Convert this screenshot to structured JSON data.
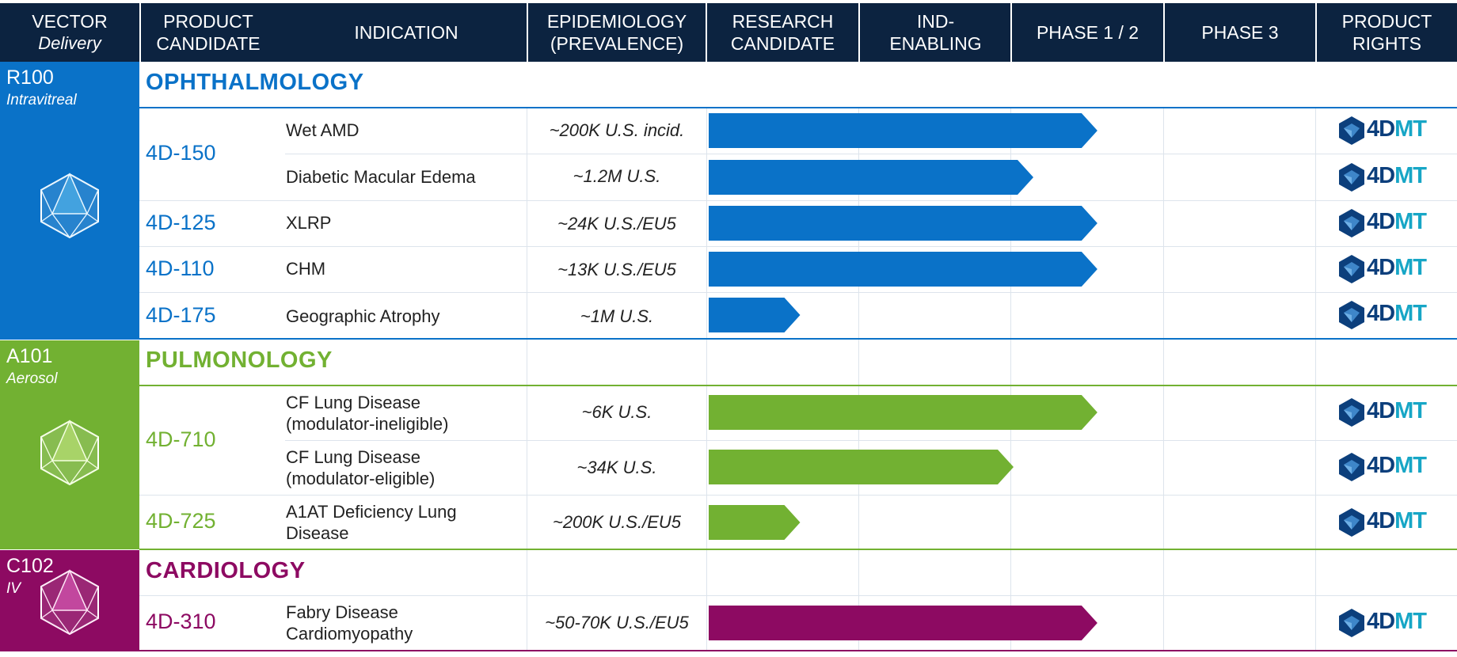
{
  "header": {
    "vector": "VECTOR",
    "vector_sub": "Delivery",
    "product_candidate_1": "PRODUCT",
    "product_candidate_2": "CANDIDATE",
    "indication": "INDICATION",
    "epidemiology_1": "EPIDEMIOLOGY",
    "epidemiology_2": "(PREVALENCE)",
    "stages": [
      {
        "line1": "RESEARCH",
        "line2": "CANDIDATE"
      },
      {
        "line1": "IND-",
        "line2": "ENABLING"
      },
      {
        "line1": "PHASE 1 / 2",
        "line2": ""
      },
      {
        "line1": "PHASE 3",
        "line2": ""
      }
    ],
    "product_rights_1": "PRODUCT",
    "product_rights_2": "RIGHTS"
  },
  "sections": [
    {
      "vector": "R100",
      "delivery": "Intravitreal",
      "title": "OPHTHALMOLOGY",
      "color": "#0a72c8"
    },
    {
      "vector": "A101",
      "delivery": "Aerosol",
      "title": "PULMONOLOGY",
      "color": "#72b132"
    },
    {
      "vector": "C102",
      "delivery": "IV",
      "title": "CARDIOLOGY",
      "color": "#8d0a62"
    }
  ],
  "rights_logo": {
    "text_part1": "4D",
    "text_part2": "MT",
    "color_dark": "#0c3f7c",
    "color_light": "#17a6c6"
  },
  "chart_data": {
    "type": "bar",
    "title": "",
    "stage_axis": [
      "RESEARCH CANDIDATE",
      "IND-ENABLING",
      "PHASE 1 / 2",
      "PHASE 3"
    ],
    "progress_unit": "stage columns completed (0-4)",
    "rows": [
      {
        "section": "OPHTHALMOLOGY",
        "candidate": "4D-150",
        "indication": "Wet AMD",
        "epidemiology": "~200K U.S. incid.",
        "progress": 2.55,
        "rights": "4DMT"
      },
      {
        "section": "OPHTHALMOLOGY",
        "candidate": "",
        "indication": "Diabetic Macular Edema",
        "epidemiology": "~1.2M U.S.",
        "progress": 2.13,
        "rights": "4DMT"
      },
      {
        "section": "OPHTHALMOLOGY",
        "candidate": "4D-125",
        "indication": "XLRP",
        "epidemiology": "~24K U.S./EU5",
        "progress": 2.55,
        "rights": "4DMT"
      },
      {
        "section": "OPHTHALMOLOGY",
        "candidate": "4D-110",
        "indication": "CHM",
        "epidemiology": "~13K U.S./EU5",
        "progress": 2.55,
        "rights": "4DMT"
      },
      {
        "section": "OPHTHALMOLOGY",
        "candidate": "4D-175",
        "indication": "Geographic Atrophy",
        "epidemiology": "~1M U.S.",
        "progress": 0.6,
        "rights": "4DMT"
      },
      {
        "section": "PULMONOLOGY",
        "candidate": "4D-710",
        "indication": "CF Lung Disease (modulator-ineligible)",
        "indication_lines": [
          "CF Lung Disease",
          "(modulator-ineligible)"
        ],
        "epidemiology": "~6K U.S.",
        "progress": 2.55,
        "rights": "4DMT"
      },
      {
        "section": "PULMONOLOGY",
        "candidate": "",
        "indication": "CF Lung Disease (modulator-eligible)",
        "indication_lines": [
          "CF Lung Disease",
          "(modulator-eligible)"
        ],
        "epidemiology": "~34K U.S.",
        "progress": 2.0,
        "rights": "4DMT"
      },
      {
        "section": "PULMONOLOGY",
        "candidate": "4D-725",
        "indication": "A1AT Deficiency Lung Disease",
        "indication_lines": [
          "A1AT Deficiency Lung",
          "Disease"
        ],
        "epidemiology": "~200K U.S./EU5",
        "progress": 0.6,
        "rights": "4DMT"
      },
      {
        "section": "CARDIOLOGY",
        "candidate": "4D-310",
        "indication": "Fabry Disease Cardiomyopathy",
        "indication_lines": [
          "Fabry Disease",
          "Cardiomyopathy"
        ],
        "epidemiology": "~50-70K U.S./EU5",
        "progress": 2.55,
        "rights": "4DMT"
      }
    ]
  }
}
